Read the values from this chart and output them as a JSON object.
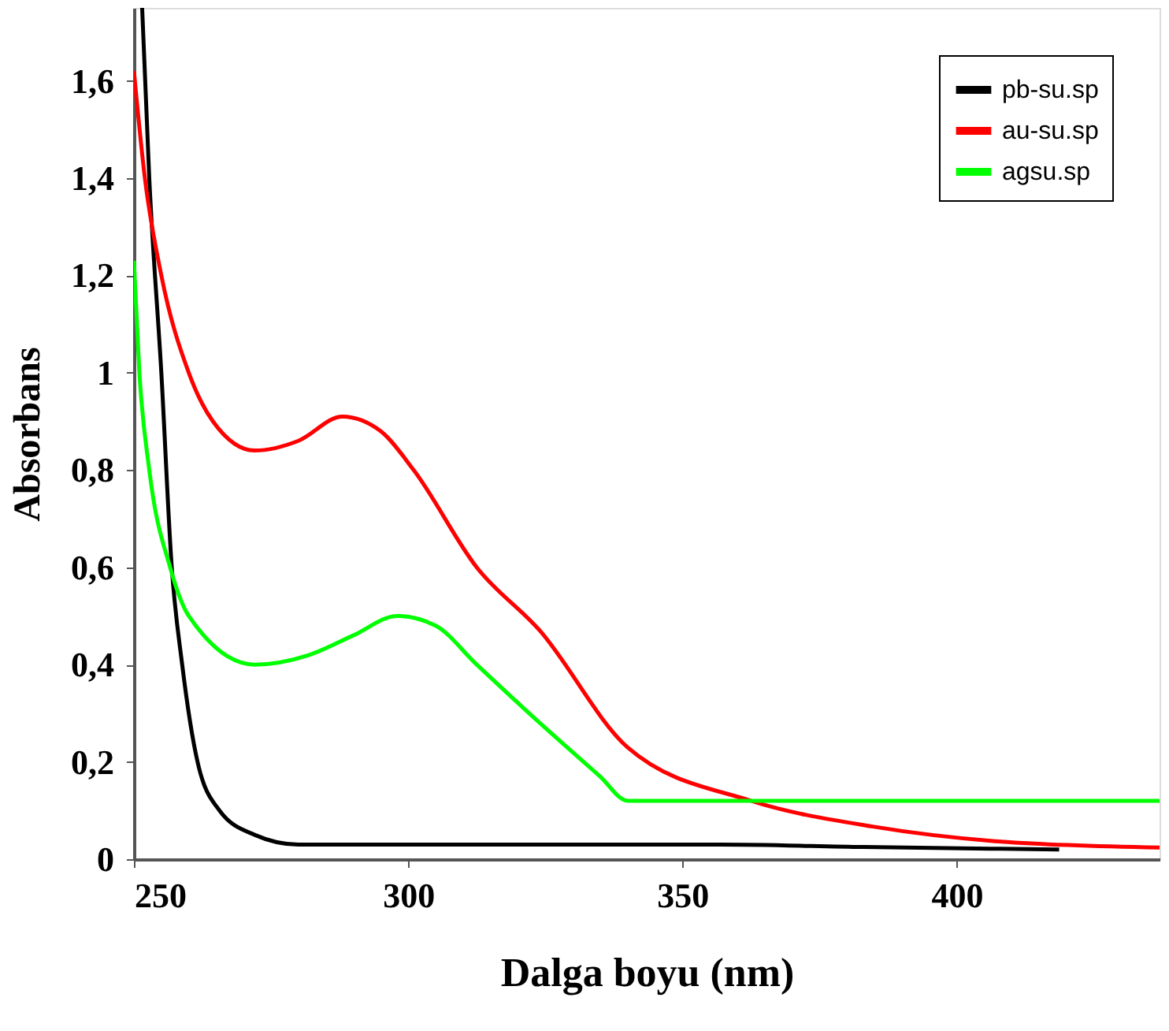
{
  "chart_data": {
    "type": "line",
    "xlabel": "Dalga boyu (nm)",
    "ylabel": "Absorbans",
    "xlim": [
      250,
      437
    ],
    "ylim": [
      0,
      1.75
    ],
    "xticks": [
      250,
      300,
      350,
      400
    ],
    "yticks": [
      0,
      {
        "value": 0.2,
        "label": "0,2"
      },
      {
        "value": 0.4,
        "label": "0,4"
      },
      {
        "value": 0.6,
        "label": "0,6"
      },
      {
        "value": 0.8,
        "label": "0,8"
      },
      1,
      {
        "value": 1.2,
        "label": "1,2"
      },
      {
        "value": 1.4,
        "label": "1,4"
      },
      {
        "value": 1.6,
        "label": "1,6"
      }
    ],
    "grid": false,
    "legend": "top right",
    "line_style": "solid",
    "marker": "none",
    "series": [
      {
        "name": "pb-su.sp",
        "color": "#000000",
        "x": [
          251.5,
          252.8,
          255,
          256.9,
          258.8,
          261.6,
          265.6,
          272,
          280,
          357,
          383,
          418.7
        ],
        "values": [
          1.75,
          1.4,
          1.0,
          0.6,
          0.4,
          0.2,
          0.1,
          0.05,
          0.03,
          0.03,
          0.025,
          0.02
        ]
      },
      {
        "name": "au-su.sp",
        "color": "#ff0000",
        "x": [
          250,
          252,
          255,
          260,
          264.4,
          272,
          280,
          288,
          295,
          301,
          312.5,
          324,
          340,
          362.5,
          384.7,
          407,
          437
        ],
        "values": [
          1.62,
          1.4,
          1.2,
          1.0,
          0.9,
          0.84,
          0.86,
          0.91,
          0.88,
          0.8,
          0.6,
          0.47,
          0.23,
          0.12,
          0.067,
          0.037,
          0.024
        ]
      },
      {
        "name": "agsu.sp",
        "color": "#00ff00",
        "x": [
          250,
          251,
          252.8,
          256.6,
          260,
          272,
          282,
          290,
          298,
          305,
          312.5,
          324,
          335,
          340,
          437
        ],
        "values": [
          1.23,
          1.0,
          0.8,
          0.6,
          0.5,
          0.4,
          0.42,
          0.46,
          0.5,
          0.48,
          0.4,
          0.28,
          0.17,
          0.12,
          0.12
        ]
      }
    ]
  }
}
